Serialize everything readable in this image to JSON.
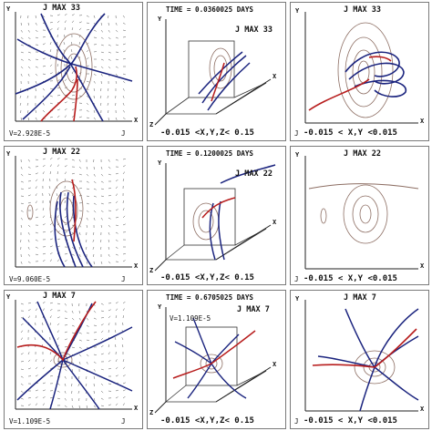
{
  "rows": [
    {
      "left": {
        "jmax": "J MAX 33",
        "v_label": "V=2.928E-5",
        "j_label": "J",
        "axis_y": "Y",
        "axis_x": "X"
      },
      "middle": {
        "time": "TIME = 0.0360025 DAYS",
        "jmax": "J MAX 33",
        "range": "-0.015 <X,Y,Z< 0.15",
        "axis_y": "Y",
        "axis_x": "X",
        "axis_z": "Z"
      },
      "right": {
        "jmax": "J MAX 33",
        "range": "-0.015 < X,Y <0.015",
        "j_label": "J",
        "axis_y": "Y",
        "axis_x": "X"
      }
    },
    {
      "left": {
        "jmax": "J MAX 22",
        "v_label": "V=9.060E-5",
        "j_label": "J",
        "axis_y": "Y",
        "axis_x": "X"
      },
      "middle": {
        "time": "TIME = 0.1200025 DAYS",
        "jmax": "J MAX 22",
        "range": "-0.015 <X,Y,Z< 0.15",
        "axis_y": "Y",
        "axis_x": "X",
        "axis_z": "Z"
      },
      "right": {
        "jmax": "J MAX 22",
        "range": "-0.015 < X,Y <0.015",
        "j_label": "J",
        "axis_y": "Y",
        "axis_x": "X"
      }
    },
    {
      "left": {
        "jmax": "J MAX 7",
        "v_label": "V=1.109E-5",
        "j_label": "J",
        "axis_y": "Y",
        "axis_x": "X"
      },
      "middle": {
        "time": "TIME = 0.6705025 DAYS",
        "jmax": "J MAX 7",
        "v_label": "V=1.109E-5",
        "range": "-0.015 <X,Y,Z< 0.15",
        "axis_y": "Y",
        "axis_x": "X",
        "axis_z": "Z"
      },
      "right": {
        "jmax": "J MAX 7",
        "range": "-0.015 < X,Y <0.015",
        "j_label": "J",
        "axis_y": "Y",
        "axis_x": "X"
      }
    }
  ],
  "colors": {
    "field_line": "#1a237e",
    "current_line": "#b71c1c",
    "contour": "#8d6e63",
    "vector": "#444444",
    "particles": "#2e7d32",
    "frame": "#7a7a7a"
  }
}
